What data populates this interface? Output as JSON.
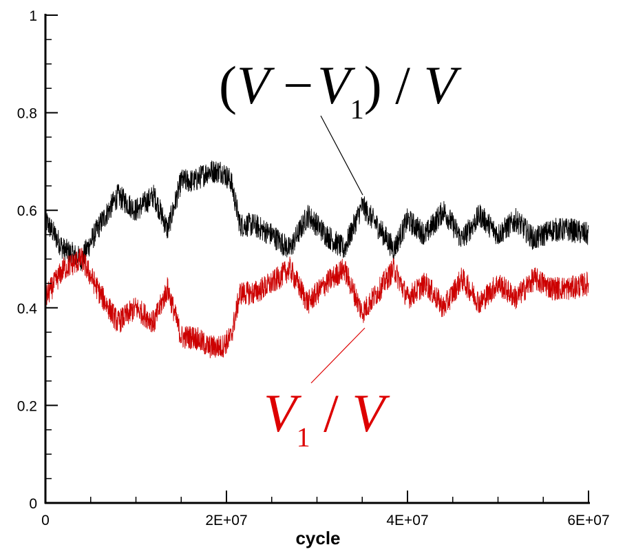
{
  "chart_data": {
    "type": "line",
    "title": "",
    "xlabel": "cycle",
    "ylabel": "",
    "xlim": [
      0,
      60000000
    ],
    "ylim": [
      0,
      1
    ],
    "grid": false,
    "x_ticks": [
      0,
      20000000,
      40000000,
      60000000
    ],
    "x_tick_labels": [
      "0",
      "2E+07",
      "4E+07",
      "6E+07"
    ],
    "y_ticks": [
      0,
      0.2,
      0.4,
      0.6,
      0.8,
      1
    ],
    "y_tick_labels": [
      "0",
      "0.2",
      "0.4",
      "0.6",
      "0.8",
      "1"
    ],
    "series": [
      {
        "name": "(V - V1) / V",
        "color": "#000000",
        "x": [
          0,
          2000000,
          4000000,
          6000000,
          8000000,
          10000000,
          12000000,
          13500000,
          15000000,
          16500000,
          18000000,
          19500000,
          20500000,
          21500000,
          23000000,
          25000000,
          27000000,
          29000000,
          31000000,
          33000000,
          35000000,
          37000000,
          38500000,
          40000000,
          42000000,
          44000000,
          46000000,
          48000000,
          50000000,
          52000000,
          54000000,
          56000000,
          58000000,
          60000000
        ],
        "values": [
          0.58,
          0.52,
          0.5,
          0.57,
          0.63,
          0.6,
          0.63,
          0.56,
          0.66,
          0.66,
          0.68,
          0.68,
          0.66,
          0.57,
          0.57,
          0.55,
          0.52,
          0.59,
          0.55,
          0.52,
          0.61,
          0.56,
          0.52,
          0.58,
          0.55,
          0.6,
          0.54,
          0.59,
          0.55,
          0.58,
          0.54,
          0.56,
          0.56,
          0.55
        ]
      },
      {
        "name": "V1 / V",
        "color": "#cc0000",
        "x": [
          0,
          2000000,
          4000000,
          6000000,
          8000000,
          10000000,
          12000000,
          13500000,
          15000000,
          16500000,
          18000000,
          19500000,
          20500000,
          21500000,
          23000000,
          25000000,
          27000000,
          29000000,
          31000000,
          33000000,
          35000000,
          37000000,
          38500000,
          40000000,
          42000000,
          44000000,
          46000000,
          48000000,
          50000000,
          52000000,
          54000000,
          56000000,
          58000000,
          60000000
        ],
        "values": [
          0.42,
          0.48,
          0.5,
          0.43,
          0.37,
          0.4,
          0.37,
          0.44,
          0.34,
          0.34,
          0.32,
          0.32,
          0.34,
          0.43,
          0.43,
          0.45,
          0.48,
          0.41,
          0.45,
          0.48,
          0.39,
          0.44,
          0.48,
          0.42,
          0.45,
          0.4,
          0.46,
          0.41,
          0.45,
          0.42,
          0.46,
          0.44,
          0.44,
          0.45
        ]
      }
    ],
    "annotations": [
      {
        "series": 0,
        "color": "#000000",
        "at_x": 35000000,
        "at_y": 0.61,
        "parts": [
          "(",
          "V",
          " −",
          "V",
          "1",
          ")",
          " / ",
          "V"
        ]
      },
      {
        "series": 1,
        "color": "#dd0000",
        "at_x": 35000000,
        "at_y": 0.38,
        "parts": [
          "V",
          "1",
          " / ",
          "V"
        ]
      }
    ]
  }
}
